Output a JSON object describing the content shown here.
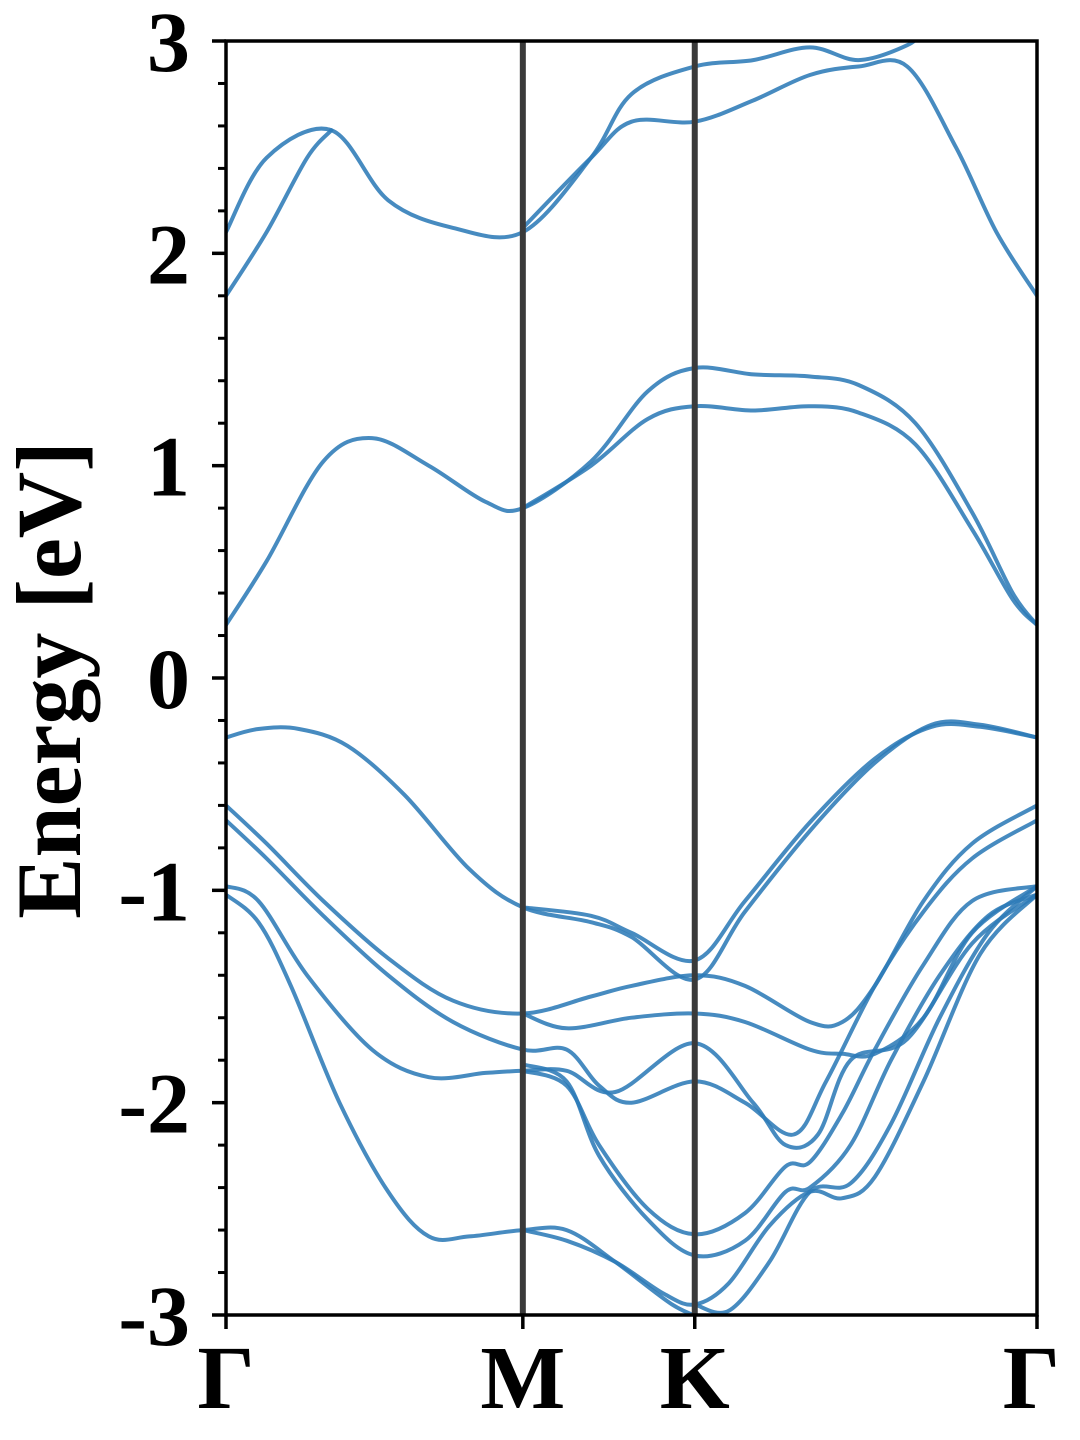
{
  "chart_data": {
    "type": "line",
    "title": "",
    "xlabel": "",
    "ylabel": "Energy [eV]",
    "ylim": [
      -3,
      3
    ],
    "y_ticks": [
      "-3",
      "-2",
      "-1",
      "0",
      "1",
      "2",
      "3"
    ],
    "y_tick_values": [
      -3,
      -2,
      -1,
      0,
      1,
      2,
      3
    ],
    "x_range": [
      0,
      1
    ],
    "x_ticks": [
      {
        "label": "Γ",
        "x": 0.0
      },
      {
        "label": "M",
        "x": 0.366
      },
      {
        "label": "K",
        "x": 0.578
      },
      {
        "label": "Γ",
        "x": 1.0
      }
    ],
    "grid": false,
    "legend": "none",
    "colors": {
      "band": "#2e7bb7",
      "kpath_line": "#3a3a3a",
      "axis": "#000000"
    },
    "series": [
      {
        "points": [
          [
            0,
            2.1
          ],
          [
            0.05,
            2.45
          ],
          [
            0.13,
            2.58
          ],
          [
            0.2,
            2.25
          ],
          [
            0.28,
            2.12
          ],
          [
            0.366,
            2.1
          ],
          [
            0.45,
            2.45
          ],
          [
            0.5,
            2.75
          ],
          [
            0.578,
            2.88
          ],
          [
            0.65,
            2.91
          ],
          [
            0.72,
            2.97
          ],
          [
            0.78,
            2.91
          ],
          [
            0.84,
            2.98
          ],
          [
            0.86,
            3.05
          ]
        ]
      },
      {
        "points": [
          [
            0.366,
            2.12
          ],
          [
            0.45,
            2.45
          ],
          [
            0.5,
            2.62
          ],
          [
            0.578,
            2.62
          ],
          [
            0.65,
            2.72
          ],
          [
            0.72,
            2.84
          ],
          [
            0.78,
            2.88
          ],
          [
            0.84,
            2.88
          ],
          [
            0.9,
            2.5
          ],
          [
            0.95,
            2.1
          ],
          [
            1.0,
            1.8
          ]
        ]
      },
      {
        "points": [
          [
            0,
            1.8
          ],
          [
            0.05,
            2.1
          ],
          [
            0.1,
            2.45
          ],
          [
            0.13,
            2.58
          ]
        ]
      },
      {
        "points": [
          [
            0,
            0.25
          ],
          [
            0.05,
            0.55
          ],
          [
            0.12,
            1.02
          ],
          [
            0.18,
            1.13
          ],
          [
            0.25,
            1.0
          ],
          [
            0.32,
            0.83
          ],
          [
            0.366,
            0.8
          ],
          [
            0.45,
            1.02
          ],
          [
            0.52,
            1.35
          ],
          [
            0.578,
            1.46
          ],
          [
            0.65,
            1.43
          ],
          [
            0.72,
            1.42
          ],
          [
            0.78,
            1.38
          ],
          [
            0.85,
            1.2
          ],
          [
            0.92,
            0.78
          ],
          [
            0.97,
            0.4
          ],
          [
            1.0,
            0.25
          ]
        ]
      },
      {
        "points": [
          [
            0.366,
            0.8
          ],
          [
            0.45,
            1.0
          ],
          [
            0.52,
            1.22
          ],
          [
            0.578,
            1.28
          ],
          [
            0.65,
            1.26
          ],
          [
            0.72,
            1.28
          ],
          [
            0.78,
            1.25
          ],
          [
            0.85,
            1.1
          ],
          [
            0.92,
            0.7
          ],
          [
            0.97,
            0.37
          ],
          [
            1.0,
            0.25
          ]
        ]
      },
      {
        "points": [
          [
            0,
            -0.28
          ],
          [
            0.04,
            -0.24
          ],
          [
            0.09,
            -0.24
          ],
          [
            0.15,
            -0.32
          ],
          [
            0.22,
            -0.55
          ],
          [
            0.3,
            -0.9
          ],
          [
            0.366,
            -1.08
          ],
          [
            0.45,
            -1.15
          ],
          [
            0.5,
            -1.22
          ],
          [
            0.578,
            -1.42
          ],
          [
            0.64,
            -1.1
          ],
          [
            0.72,
            -0.72
          ],
          [
            0.8,
            -0.4
          ],
          [
            0.87,
            -0.22
          ],
          [
            0.93,
            -0.22
          ],
          [
            1.0,
            -0.28
          ]
        ]
      },
      {
        "points": [
          [
            0.366,
            -1.08
          ],
          [
            0.45,
            -1.12
          ],
          [
            0.5,
            -1.2
          ],
          [
            0.578,
            -1.33
          ],
          [
            0.64,
            -1.05
          ],
          [
            0.72,
            -0.68
          ],
          [
            0.8,
            -0.38
          ],
          [
            0.87,
            -0.23
          ],
          [
            0.93,
            -0.23
          ],
          [
            1.0,
            -0.28
          ]
        ]
      },
      {
        "points": [
          [
            0,
            -0.6
          ],
          [
            0.05,
            -0.78
          ],
          [
            0.12,
            -1.05
          ],
          [
            0.2,
            -1.32
          ],
          [
            0.28,
            -1.52
          ],
          [
            0.366,
            -1.58
          ],
          [
            0.45,
            -1.5
          ],
          [
            0.5,
            -1.45
          ],
          [
            0.578,
            -1.4
          ],
          [
            0.64,
            -1.45
          ],
          [
            0.72,
            -1.62
          ],
          [
            0.76,
            -1.62
          ],
          [
            0.8,
            -1.45
          ],
          [
            0.86,
            -1.05
          ],
          [
            0.92,
            -0.78
          ],
          [
            1.0,
            -0.6
          ]
        ]
      },
      {
        "points": [
          [
            0,
            -0.67
          ],
          [
            0.05,
            -0.85
          ],
          [
            0.12,
            -1.12
          ],
          [
            0.2,
            -1.4
          ],
          [
            0.28,
            -1.62
          ],
          [
            0.366,
            -1.75
          ],
          [
            0.42,
            -1.75
          ],
          [
            0.46,
            -1.92
          ],
          [
            0.5,
            -2.0
          ],
          [
            0.578,
            -1.9
          ],
          [
            0.64,
            -2.0
          ],
          [
            0.7,
            -2.15
          ],
          [
            0.74,
            -1.9
          ],
          [
            0.8,
            -1.45
          ],
          [
            0.86,
            -1.1
          ],
          [
            0.92,
            -0.85
          ],
          [
            1.0,
            -0.67
          ]
        ]
      },
      {
        "points": [
          [
            0.366,
            -1.58
          ],
          [
            0.42,
            -1.65
          ],
          [
            0.5,
            -1.6
          ],
          [
            0.578,
            -1.58
          ],
          [
            0.64,
            -1.62
          ],
          [
            0.72,
            -1.75
          ],
          [
            0.76,
            -1.77
          ],
          [
            0.8,
            -1.77
          ],
          [
            0.86,
            -1.6
          ],
          [
            0.92,
            -1.2
          ],
          [
            1.0,
            -0.98
          ]
        ]
      },
      {
        "points": [
          [
            0,
            -0.98
          ],
          [
            0.04,
            -1.05
          ],
          [
            0.1,
            -1.4
          ],
          [
            0.18,
            -1.75
          ],
          [
            0.25,
            -1.88
          ],
          [
            0.32,
            -1.86
          ],
          [
            0.366,
            -1.85
          ],
          [
            0.42,
            -1.85
          ],
          [
            0.48,
            -1.95
          ],
          [
            0.578,
            -1.72
          ],
          [
            0.65,
            -2.0
          ],
          [
            0.69,
            -2.2
          ],
          [
            0.73,
            -2.15
          ],
          [
            0.77,
            -1.8
          ],
          [
            0.84,
            -1.7
          ],
          [
            0.92,
            -1.25
          ],
          [
            1.0,
            -1.02
          ]
        ]
      },
      {
        "points": [
          [
            0,
            -1.02
          ],
          [
            0.04,
            -1.15
          ],
          [
            0.08,
            -1.45
          ],
          [
            0.14,
            -2.0
          ],
          [
            0.2,
            -2.42
          ],
          [
            0.25,
            -2.63
          ],
          [
            0.3,
            -2.63
          ],
          [
            0.366,
            -2.6
          ],
          [
            0.42,
            -2.6
          ],
          [
            0.48,
            -2.75
          ],
          [
            0.55,
            -2.95
          ],
          [
            0.59,
            -3.02
          ]
        ]
      },
      {
        "points": [
          [
            0.366,
            -1.85
          ],
          [
            0.42,
            -1.92
          ],
          [
            0.46,
            -2.2
          ],
          [
            0.52,
            -2.5
          ],
          [
            0.578,
            -2.62
          ],
          [
            0.64,
            -2.52
          ],
          [
            0.69,
            -2.3
          ],
          [
            0.72,
            -2.28
          ],
          [
            0.76,
            -2.05
          ],
          [
            0.8,
            -1.75
          ],
          [
            0.86,
            -1.35
          ],
          [
            0.92,
            -1.05
          ],
          [
            1.0,
            -0.98
          ]
        ]
      },
      {
        "points": [
          [
            0.366,
            -1.82
          ],
          [
            0.42,
            -1.9
          ],
          [
            0.46,
            -2.25
          ],
          [
            0.52,
            -2.55
          ],
          [
            0.578,
            -2.72
          ],
          [
            0.64,
            -2.65
          ],
          [
            0.69,
            -2.42
          ],
          [
            0.72,
            -2.4
          ],
          [
            0.77,
            -2.2
          ],
          [
            0.82,
            -1.8
          ],
          [
            0.88,
            -1.4
          ],
          [
            0.94,
            -1.12
          ],
          [
            1.0,
            -1.02
          ]
        ]
      },
      {
        "points": [
          [
            0.366,
            -2.6
          ],
          [
            0.42,
            -2.65
          ],
          [
            0.48,
            -2.75
          ],
          [
            0.54,
            -2.9
          ],
          [
            0.578,
            -2.95
          ],
          [
            0.62,
            -2.85
          ],
          [
            0.67,
            -2.58
          ],
          [
            0.72,
            -2.42
          ],
          [
            0.76,
            -2.45
          ],
          [
            0.8,
            -2.35
          ],
          [
            0.86,
            -1.9
          ],
          [
            0.93,
            -1.3
          ],
          [
            1.0,
            -1.02
          ]
        ]
      },
      {
        "points": [
          [
            0.578,
            -2.95
          ],
          [
            0.62,
            -2.98
          ],
          [
            0.67,
            -2.75
          ],
          [
            0.72,
            -2.42
          ],
          [
            0.77,
            -2.38
          ],
          [
            0.82,
            -2.1
          ],
          [
            0.88,
            -1.6
          ],
          [
            0.94,
            -1.2
          ],
          [
            1.0,
            -0.98
          ]
        ]
      }
    ]
  }
}
